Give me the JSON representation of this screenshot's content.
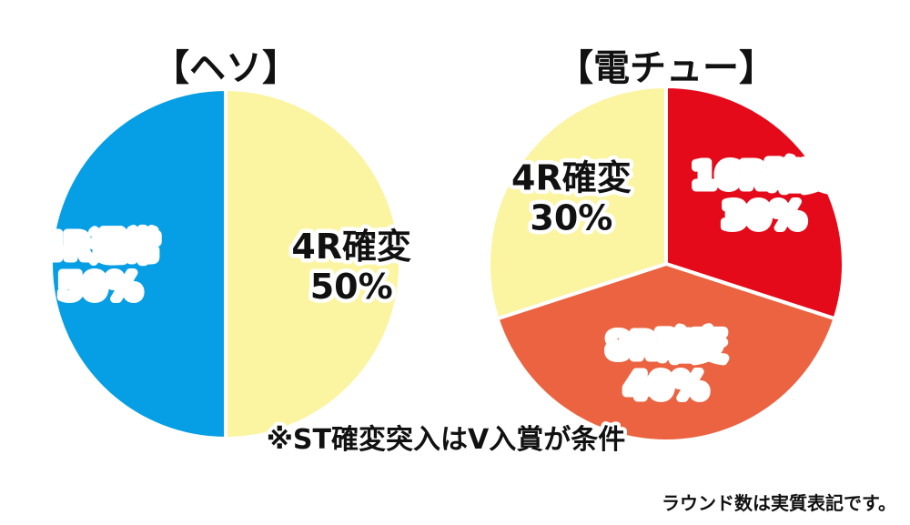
{
  "chart_data": [
    {
      "type": "pie",
      "title": "【ヘソ】",
      "slices": [
        {
          "label": "4R確変",
          "percent_label": "50%",
          "value": 50,
          "color": "#fbf4a1",
          "text_color": "#111111"
        },
        {
          "label": "4R通常",
          "percent_label": "50%",
          "value": 50,
          "color": "#069ee5",
          "text_color": "#ffffff"
        }
      ]
    },
    {
      "type": "pie",
      "title": "【電チュー】",
      "slices": [
        {
          "label": "16R確変",
          "percent_label": "30%",
          "value": 30,
          "color": "#e50a19",
          "text_color": "#ffffff"
        },
        {
          "label": "8R確変",
          "percent_label": "40%",
          "value": 40,
          "color": "#eb6340",
          "text_color": "#ffffff"
        },
        {
          "label": "4R確変",
          "percent_label": "30%",
          "value": 30,
          "color": "#fbf4a1",
          "text_color": "#111111"
        }
      ]
    }
  ],
  "notes": {
    "condition": "※ST確変突入はV入賞が条件",
    "rounds": "ラウンド数は実質表記です。"
  }
}
